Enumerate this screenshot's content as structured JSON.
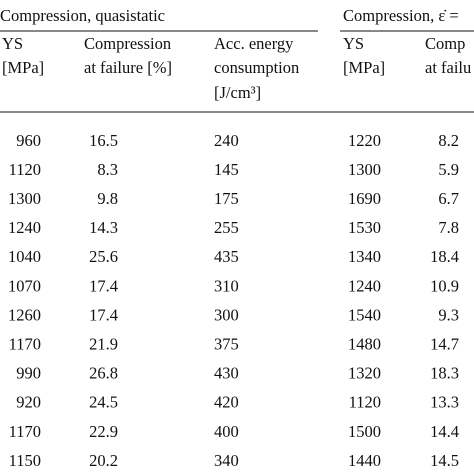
{
  "header": {
    "groups": [
      "Compression, quasistatic",
      "Compression, ε̇ ="
    ],
    "columns": [
      [
        "YS",
        "[MPa]"
      ],
      [
        "Compression",
        "at failure [%]"
      ],
      [
        "Acc. energy",
        "consumption",
        "[J/cm³]"
      ],
      [
        "YS",
        "[MPa]"
      ],
      [
        "Comp",
        "at failu"
      ]
    ]
  },
  "table": {
    "rows": [
      [
        "960",
        "16.5",
        "240",
        "1220",
        "8.2"
      ],
      [
        "1120",
        "8.3",
        "145",
        "1300",
        "5.9"
      ],
      [
        "1300",
        "9.8",
        "175",
        "1690",
        "6.7"
      ],
      [
        "1240",
        "14.3",
        "255",
        "1530",
        "7.8"
      ],
      [
        "1040",
        "25.6",
        "435",
        "1340",
        "18.4"
      ],
      [
        "1070",
        "17.4",
        "310",
        "1240",
        "10.9"
      ],
      [
        "1260",
        "17.4",
        "300",
        "1540",
        "9.3"
      ],
      [
        "1170",
        "21.9",
        "375",
        "1480",
        "14.7"
      ],
      [
        "990",
        "26.8",
        "430",
        "1320",
        "18.3"
      ],
      [
        "920",
        "24.5",
        "420",
        "1120",
        "13.3"
      ],
      [
        "1170",
        "22.9",
        "400",
        "1500",
        "14.4"
      ],
      [
        "1150",
        "20.2",
        "340",
        "1440",
        "14.5"
      ]
    ]
  }
}
